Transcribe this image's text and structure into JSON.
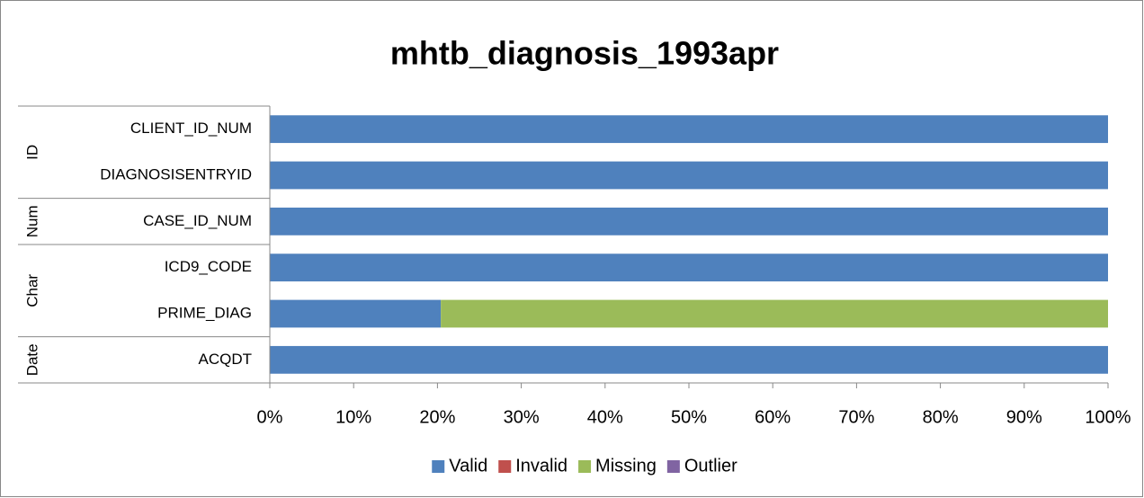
{
  "chart_data": {
    "type": "stacked_barh",
    "title": "mhtb_diagnosis_1993apr",
    "groups": [
      {
        "name": "ID",
        "categories": [
          "CLIENT_ID_NUM",
          "DIAGNOSISENTRYID"
        ]
      },
      {
        "name": "Num",
        "categories": [
          "CASE_ID_NUM"
        ]
      },
      {
        "name": "Char",
        "categories": [
          "ICD9_CODE",
          "PRIME_DIAG"
        ]
      },
      {
        "name": "Date",
        "categories": [
          "ACQDT"
        ]
      }
    ],
    "series": [
      {
        "name": "Valid",
        "color": "#4f81bd",
        "values": [
          100,
          100,
          100,
          100,
          20.4,
          100
        ]
      },
      {
        "name": "Invalid",
        "color": "#c0504d",
        "values": [
          0,
          0,
          0,
          0,
          0,
          0
        ]
      },
      {
        "name": "Missing",
        "color": "#9bbb59",
        "values": [
          0,
          0,
          0,
          0,
          79.6,
          0
        ]
      },
      {
        "name": "Outlier",
        "color": "#8064a2",
        "values": [
          0,
          0,
          0,
          0,
          0,
          0
        ]
      }
    ],
    "xlim": [
      0,
      100
    ],
    "xticks": [
      {
        "value": 0,
        "label": "0%"
      },
      {
        "value": 10,
        "label": "10%"
      },
      {
        "value": 20,
        "label": "20%"
      },
      {
        "value": 30,
        "label": "30%"
      },
      {
        "value": 40,
        "label": "40%"
      },
      {
        "value": 50,
        "label": "50%"
      },
      {
        "value": 60,
        "label": "60%"
      },
      {
        "value": 70,
        "label": "70%"
      },
      {
        "value": 80,
        "label": "80%"
      },
      {
        "value": 90,
        "label": "90%"
      },
      {
        "value": 100,
        "label": "100%"
      }
    ],
    "legend": "bottom"
  }
}
